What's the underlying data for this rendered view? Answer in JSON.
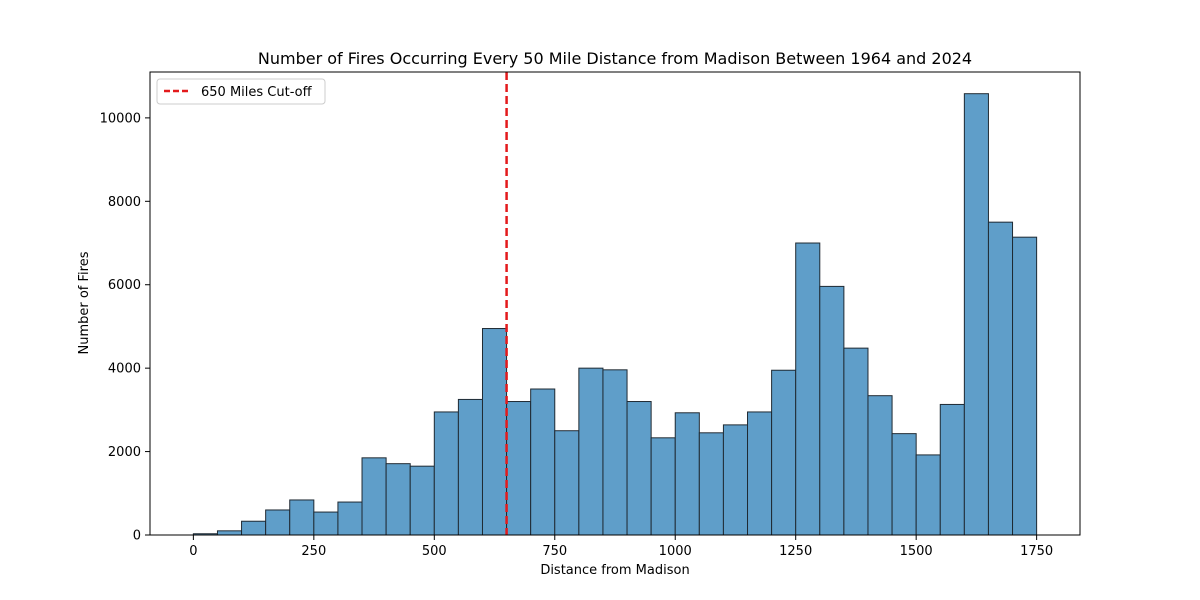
{
  "chart_data": {
    "type": "bar",
    "title": "Number of Fires Occurring Every 50 Mile Distance from Madison Between 1964 and 2024",
    "xlabel": "Distance from Madison",
    "ylabel": "Number of Fires",
    "xlim": [
      -90,
      1840
    ],
    "ylim": [
      0,
      11100
    ],
    "x_ticks": [
      0,
      250,
      500,
      750,
      1000,
      1250,
      1500,
      1750
    ],
    "y_ticks": [
      0,
      2000,
      4000,
      6000,
      8000,
      10000
    ],
    "bin_width": 50,
    "bins": [
      0,
      50,
      100,
      150,
      200,
      250,
      300,
      350,
      400,
      450,
      500,
      550,
      600,
      650,
      700,
      750,
      800,
      850,
      900,
      950,
      1000,
      1050,
      1100,
      1150,
      1200,
      1250,
      1300,
      1350,
      1400,
      1450,
      1500,
      1550,
      1600,
      1650,
      1700
    ],
    "values": [
      30,
      100,
      330,
      600,
      840,
      550,
      790,
      1850,
      1710,
      1650,
      2950,
      3250,
      4950,
      3200,
      3500,
      2500,
      4000,
      3960,
      3200,
      2330,
      2930,
      2450,
      2640,
      2950,
      3950,
      7000,
      5960,
      4480,
      3340,
      2430,
      1920,
      3130,
      10580,
      7500,
      7140
    ],
    "bar_color": "#5f9ec9",
    "bar_edge_color": "#1f2a33",
    "grid": false,
    "cutoff_line": {
      "x": 650,
      "color": "#e31a1c",
      "style": "dashed",
      "label": "650 Miles Cut-off"
    },
    "legend_position": "top-left"
  }
}
